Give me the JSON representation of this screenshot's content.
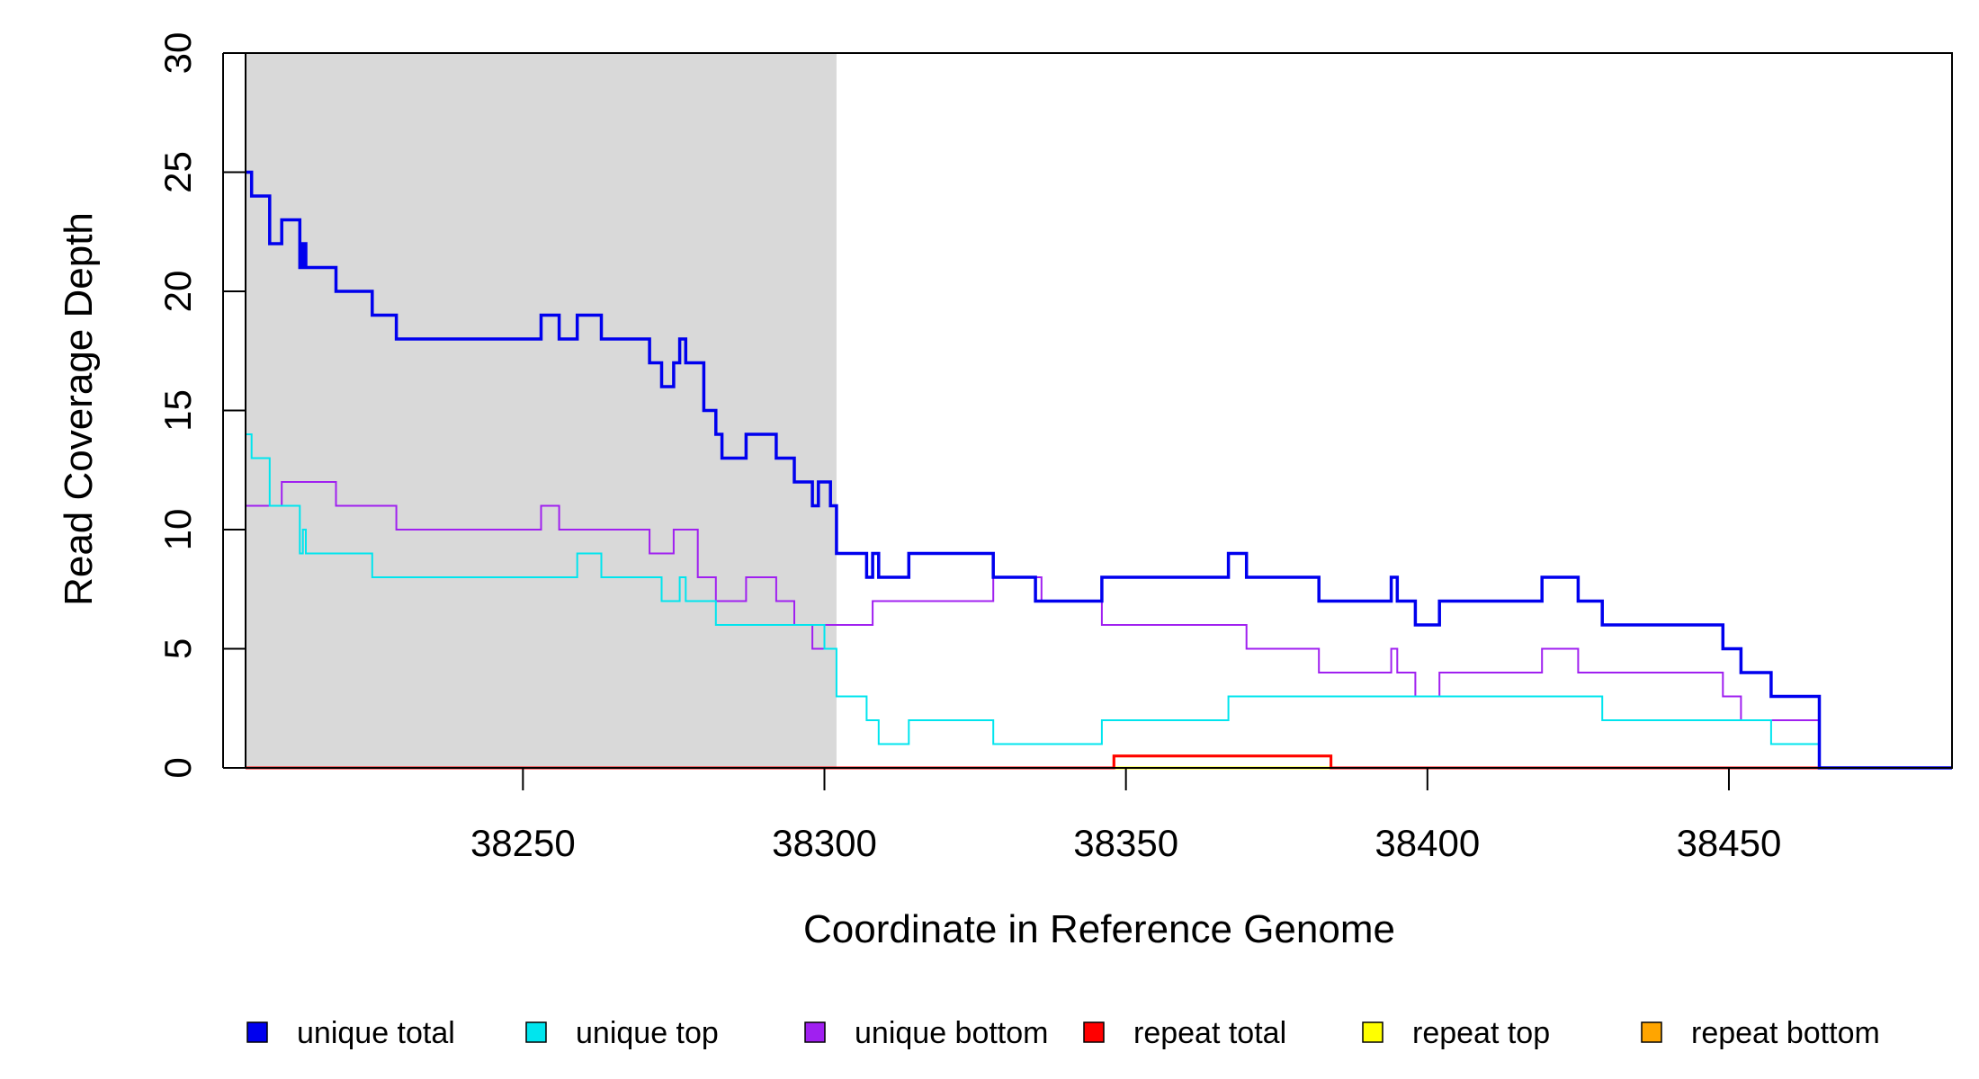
{
  "chart_data": {
    "type": "line",
    "xlabel": "Coordinate in Reference Genome",
    "ylabel": "Read Coverage Depth",
    "xlim": [
      38204,
      38487
    ],
    "ylim": [
      0,
      30
    ],
    "xticks": [
      38250,
      38300,
      38350,
      38400,
      38450
    ],
    "yticks": [
      0,
      5,
      10,
      15,
      20,
      25,
      30
    ],
    "shaded_region": {
      "x_start": 38204,
      "x_end": 38302,
      "color": "#d9d9d9"
    },
    "grid": false,
    "legend_position": "bottom",
    "series": [
      {
        "name": "unique total",
        "color": "#0000ee",
        "x": [
          38204,
          38205,
          38208,
          38210,
          38213,
          38213.5,
          38214,
          38215,
          38219,
          38225,
          38229,
          38232,
          38243,
          38253,
          38256,
          38259,
          38263,
          38268,
          38271,
          38273,
          38275,
          38276,
          38277,
          38280,
          38282,
          38283,
          38287,
          38292,
          38295,
          38298,
          38299,
          38301,
          38302,
          38307,
          38308,
          38309,
          38314,
          38320,
          38328,
          38335,
          38346,
          38360,
          38367,
          38370,
          38382,
          38394,
          38395,
          38398,
          38402,
          38406,
          38419,
          38425,
          38429,
          38440,
          38449,
          38452,
          38457,
          38465,
          38487
        ],
        "y": [
          25,
          24,
          22,
          23,
          21,
          22,
          21,
          21,
          20,
          19,
          18,
          18,
          18,
          19,
          18,
          19,
          18,
          18,
          17,
          16,
          17,
          18,
          17,
          15,
          14,
          13,
          14,
          13,
          12,
          11,
          12,
          11,
          9,
          8,
          9,
          8,
          9,
          9,
          8,
          7,
          8,
          8,
          9,
          8,
          7,
          8,
          7,
          6,
          7,
          7,
          8,
          7,
          6,
          6,
          5,
          4,
          3,
          0,
          0
        ]
      },
      {
        "name": "unique top",
        "color": "#00e5ee",
        "x": [
          38204,
          38205,
          38208,
          38213,
          38213.5,
          38214,
          38215,
          38225,
          38234,
          38253,
          38259,
          38263,
          38270,
          38273,
          38276,
          38277,
          38282,
          38290,
          38300,
          38302,
          38307,
          38309,
          38314,
          38320,
          38328,
          38346,
          38360,
          38367,
          38382,
          38398,
          38406,
          38429,
          38449,
          38457,
          38465,
          38487
        ],
        "y": [
          14,
          13,
          11,
          9,
          10,
          9,
          9,
          8,
          8,
          8,
          9,
          8,
          8,
          7,
          8,
          7,
          6,
          6,
          5,
          3,
          2,
          1,
          2,
          2,
          1,
          2,
          2,
          3,
          3,
          3,
          3,
          2,
          2,
          1,
          0,
          0
        ]
      },
      {
        "name": "unique bottom",
        "color": "#a020f0",
        "x": [
          38204,
          38210,
          38219,
          38229,
          38240,
          38253,
          38256,
          38268,
          38271,
          38275,
          38279,
          38282,
          38287,
          38292,
          38295,
          38298,
          38300,
          38302,
          38308,
          38320,
          38328,
          38336,
          38346,
          38360,
          38370,
          38382,
          38394,
          38395,
          38398,
          38402,
          38406,
          38419,
          38425,
          38440,
          38449,
          38452,
          38465,
          38487
        ],
        "y": [
          11,
          12,
          11,
          10,
          10,
          11,
          10,
          10,
          9,
          10,
          8,
          7,
          8,
          7,
          6,
          5,
          6,
          6,
          7,
          7,
          8,
          7,
          6,
          6,
          5,
          4,
          5,
          4,
          3,
          4,
          4,
          5,
          4,
          4,
          3,
          2,
          0,
          0
        ]
      },
      {
        "name": "repeat total",
        "color": "#ff0000",
        "x": [
          38204,
          38348,
          38384,
          38487
        ],
        "y": [
          0,
          0.5,
          0,
          0
        ]
      },
      {
        "name": "repeat top",
        "color": "#ffff00",
        "x": [
          38204,
          38487
        ],
        "y": [
          0,
          0
        ]
      },
      {
        "name": "repeat bottom",
        "color": "#ffa500",
        "x": [
          38204,
          38348,
          38384,
          38487
        ],
        "y": [
          0,
          0.5,
          0,
          0
        ]
      }
    ]
  }
}
